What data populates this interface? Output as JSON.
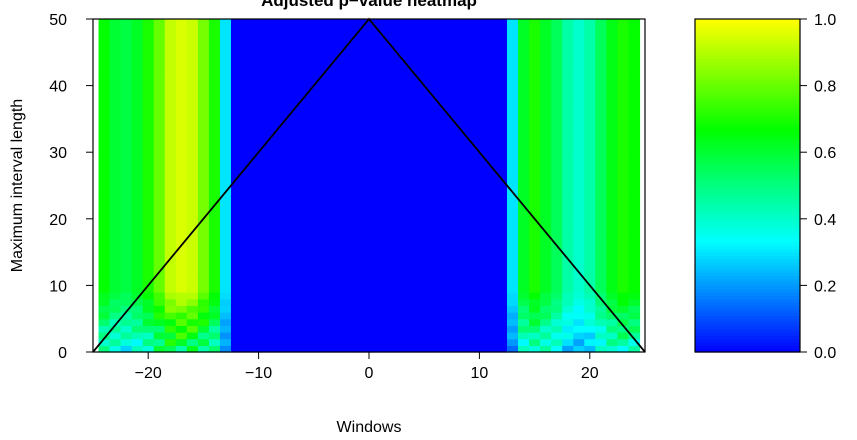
{
  "chart_data": [
    {
      "type": "heatmap",
      "title": "Adjusted p−value heatmap",
      "xlabel": "Windows",
      "ylabel": "Maximum interval length",
      "xlim": [
        -25,
        25
      ],
      "ylim": [
        0,
        50
      ],
      "x_ticks": [
        "−20",
        "−10",
        "0",
        "10",
        "20"
      ],
      "x_tick_values": [
        -20,
        -10,
        0,
        10,
        20
      ],
      "y_ticks": [
        "0",
        "10",
        "20",
        "30",
        "40",
        "50"
      ],
      "y_tick_values": [
        0,
        10,
        20,
        30,
        40,
        50
      ],
      "value_range": [
        0,
        1
      ],
      "colormap": "blue-cyan-green-yellow",
      "window_centers": [
        -24,
        -23,
        -22,
        -21,
        -20,
        -19,
        -18,
        -17,
        -16,
        -15,
        -14,
        -13,
        -12,
        -11,
        -10,
        -9,
        -8,
        -7,
        -6,
        -5,
        -4,
        -3,
        -2,
        -1,
        0,
        1,
        2,
        3,
        4,
        5,
        6,
        7,
        8,
        9,
        10,
        11,
        12,
        13,
        14,
        15,
        16,
        17,
        18,
        19,
        20,
        21,
        22,
        23,
        24
      ],
      "column_values": [
        0.67,
        0.6,
        0.58,
        0.62,
        0.7,
        0.8,
        0.92,
        0.95,
        0.93,
        0.82,
        0.7,
        0.3,
        0.0,
        0.0,
        0.0,
        0.0,
        0.0,
        0.0,
        0.0,
        0.0,
        0.0,
        0.0,
        0.0,
        0.0,
        0.0,
        0.0,
        0.0,
        0.0,
        0.0,
        0.0,
        0.0,
        0.0,
        0.0,
        0.0,
        0.0,
        0.0,
        0.0,
        0.3,
        0.62,
        0.7,
        0.62,
        0.55,
        0.45,
        0.4,
        0.45,
        0.55,
        0.64,
        0.7,
        0.67
      ],
      "low_rows_note": "cooler (blue-cyan) cells near interval lengths 0–8",
      "overlay_lines": [
        {
          "x": [
            -25,
            0,
            25
          ],
          "y": [
            0,
            50,
            0
          ],
          "color": "#000000"
        }
      ]
    },
    {
      "type": "heatmap",
      "title": "",
      "ylim": [
        0,
        1
      ],
      "ticks": [
        "0.0",
        "0.2",
        "0.4",
        "0.6",
        "0.8",
        "1.0"
      ],
      "tick_values": [
        0,
        0.2,
        0.4,
        0.6,
        0.8,
        1.0
      ],
      "colormap": "blue-cyan-green-yellow"
    }
  ],
  "colors": {
    "stops": [
      "#0000ff",
      "#00ffff",
      "#00ff00",
      "#ffff00"
    ]
  }
}
